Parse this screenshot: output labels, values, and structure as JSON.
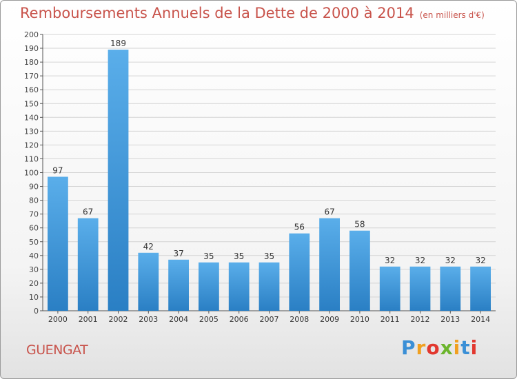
{
  "chart_data": {
    "type": "bar",
    "title": "Remboursements Annuels de la Dette de 2000 à 2014",
    "unit": "(en milliers d'€)",
    "categories": [
      "2000",
      "2001",
      "2002",
      "2003",
      "2004",
      "2005",
      "2006",
      "2007",
      "2008",
      "2009",
      "2010",
      "2011",
      "2012",
      "2013",
      "2014"
    ],
    "values": [
      97,
      67,
      189,
      42,
      37,
      35,
      35,
      35,
      56,
      67,
      58,
      32,
      32,
      32,
      32
    ],
    "ylim": [
      0,
      200
    ],
    "ytick_step": 10,
    "grid": true,
    "bar_color_top": "#5aaeea",
    "bar_color_bottom": "#2a7fc4"
  },
  "commune": "GUENGAT",
  "logo": {
    "letters": [
      "P",
      "r",
      "o",
      "x",
      "i",
      "t",
      "i"
    ],
    "colors": [
      "#3a8fd6",
      "#f0a020",
      "#e2382f",
      "#6cb52d",
      "#f0a020",
      "#3a8fd6",
      "#e2382f"
    ]
  }
}
